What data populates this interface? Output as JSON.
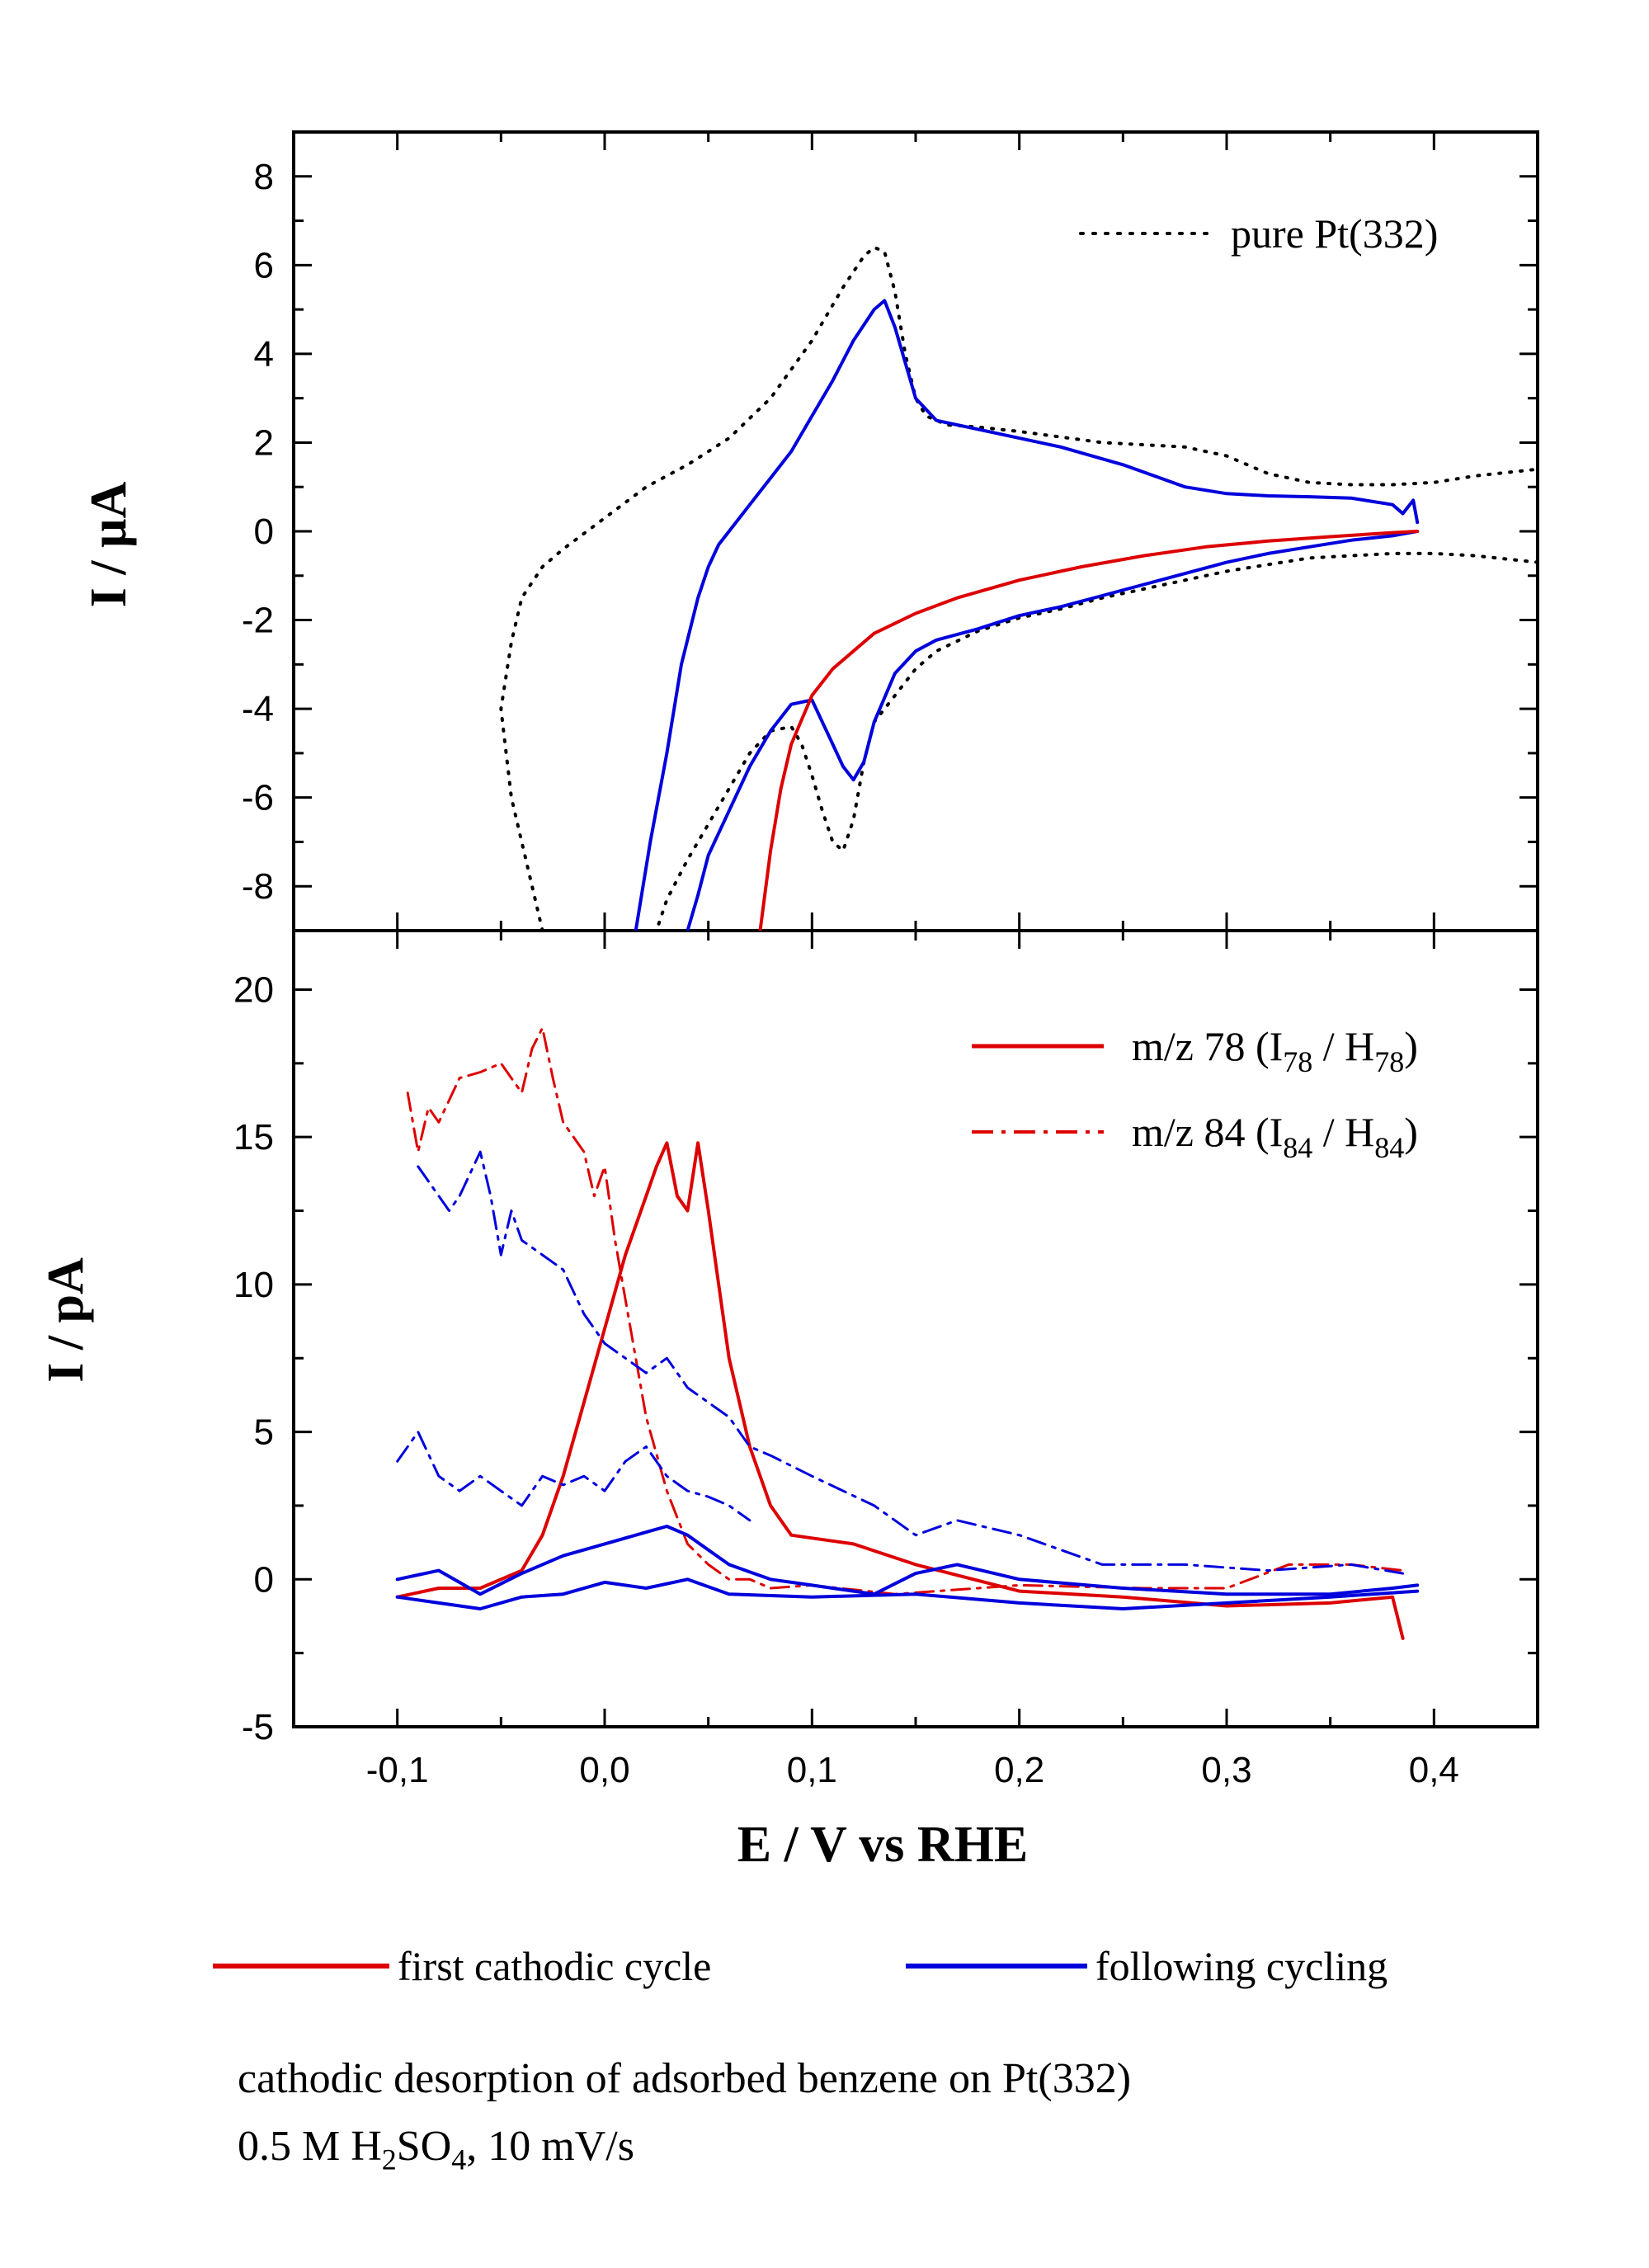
{
  "chart_data": [
    {
      "type": "line",
      "panel": "top",
      "ylabel": "I / µA",
      "ylim": [
        -9,
        9
      ],
      "xlim": [
        -0.15,
        0.45
      ],
      "y_ticks": [
        8,
        6,
        4,
        2,
        0,
        -2,
        -4,
        -6,
        -8
      ],
      "y_tick_labels": [
        "8",
        "6",
        "4",
        "2",
        "0",
        "-2",
        "-4",
        "-6",
        "-8"
      ],
      "legend": "top-right",
      "series": [
        {
          "name": "pure Pt(332)",
          "color": "#000000",
          "style": "dotted",
          "x": [
            -0.03,
            -0.045,
            -0.05,
            -0.045,
            -0.04,
            -0.03,
            -0.02,
            0.0,
            0.02,
            0.04,
            0.06,
            0.08,
            0.1,
            0.115,
            0.125,
            0.13,
            0.135,
            0.14,
            0.145,
            0.15,
            0.155,
            0.165,
            0.18,
            0.2,
            0.24,
            0.28,
            0.3,
            0.32,
            0.34,
            0.36,
            0.38,
            0.4,
            0.42,
            0.45
          ],
          "y": [
            -9.0,
            -6.0,
            -4.0,
            -2.5,
            -1.5,
            -0.8,
            -0.4,
            0.3,
            1.0,
            1.5,
            2.1,
            3.0,
            4.3,
            5.5,
            6.2,
            6.4,
            6.3,
            5.4,
            4.0,
            3.0,
            2.6,
            2.4,
            2.35,
            2.25,
            2.0,
            1.9,
            1.7,
            1.3,
            1.1,
            1.05,
            1.05,
            1.1,
            1.25,
            1.4
          ]
        },
        {
          "name": "",
          "color": "#000000",
          "style": "dotted",
          "x": [
            0.45,
            0.42,
            0.4,
            0.38,
            0.36,
            0.34,
            0.32,
            0.3,
            0.28,
            0.26,
            0.24,
            0.22,
            0.2,
            0.18,
            0.16,
            0.15,
            0.14,
            0.13,
            0.125,
            0.12,
            0.115,
            0.11,
            0.105,
            0.1,
            0.095,
            0.09,
            0.08,
            0.07,
            0.06,
            0.05,
            0.04,
            0.03,
            0.025
          ],
          "y": [
            -0.7,
            -0.55,
            -0.5,
            -0.5,
            -0.55,
            -0.6,
            -0.75,
            -0.9,
            -1.1,
            -1.3,
            -1.5,
            -1.75,
            -1.95,
            -2.25,
            -2.7,
            -3.1,
            -3.7,
            -4.3,
            -5.2,
            -6.5,
            -7.2,
            -7.0,
            -6.3,
            -5.5,
            -4.8,
            -4.4,
            -4.5,
            -5.0,
            -5.8,
            -6.6,
            -7.4,
            -8.3,
            -9.0
          ]
        },
        {
          "name": "",
          "color": "#0000dd",
          "style": "solid",
          "x": [
            0.015,
            0.022,
            0.03,
            0.037,
            0.045,
            0.05,
            0.055,
            0.06,
            0.07,
            0.08,
            0.09,
            0.1,
            0.11,
            0.12,
            0.13,
            0.135,
            0.14,
            0.145,
            0.15,
            0.16,
            0.18,
            0.2,
            0.22,
            0.25,
            0.28,
            0.3,
            0.32,
            0.34,
            0.36,
            0.38,
            0.385,
            0.39,
            0.392
          ],
          "y": [
            -9.0,
            -7.0,
            -5.0,
            -3.0,
            -1.5,
            -0.8,
            -0.3,
            0.0,
            0.6,
            1.2,
            1.8,
            2.6,
            3.4,
            4.3,
            5.0,
            5.2,
            4.6,
            3.8,
            3.0,
            2.5,
            2.3,
            2.1,
            1.9,
            1.5,
            1.0,
            0.85,
            0.8,
            0.78,
            0.75,
            0.6,
            0.4,
            0.7,
            0.2
          ]
        },
        {
          "name": "",
          "color": "#0000dd",
          "style": "solid",
          "x": [
            0.392,
            0.38,
            0.36,
            0.34,
            0.32,
            0.3,
            0.28,
            0.26,
            0.24,
            0.22,
            0.2,
            0.19,
            0.18,
            0.16,
            0.15,
            0.14,
            0.13,
            0.125,
            0.12,
            0.115,
            0.11,
            0.1,
            0.09,
            0.08,
            0.07,
            0.06,
            0.05,
            0.045,
            0.04
          ],
          "y": [
            0.0,
            -0.1,
            -0.2,
            -0.35,
            -0.5,
            -0.7,
            -0.95,
            -1.2,
            -1.45,
            -1.7,
            -1.9,
            -2.05,
            -2.2,
            -2.45,
            -2.7,
            -3.2,
            -4.3,
            -5.2,
            -5.6,
            -5.3,
            -4.8,
            -3.8,
            -3.9,
            -4.5,
            -5.3,
            -6.3,
            -7.3,
            -8.2,
            -9.0
          ]
        },
        {
          "name": "",
          "color": "#dd0000",
          "style": "solid",
          "x": [
            0.075,
            0.08,
            0.085,
            0.09,
            0.1,
            0.11,
            0.12,
            0.13,
            0.15,
            0.17,
            0.2,
            0.23,
            0.26,
            0.29,
            0.32,
            0.35,
            0.38,
            0.392
          ],
          "y": [
            -9.0,
            -7.2,
            -5.8,
            -4.8,
            -3.7,
            -3.1,
            -2.7,
            -2.3,
            -1.85,
            -1.5,
            -1.1,
            -0.8,
            -0.55,
            -0.35,
            -0.22,
            -0.12,
            -0.03,
            0.0
          ]
        }
      ]
    },
    {
      "type": "line",
      "panel": "bottom",
      "ylabel": "I / pA",
      "xlabel": "E / V vs RHE",
      "ylim": [
        -5,
        22
      ],
      "xlim": [
        -0.15,
        0.45
      ],
      "y_ticks": [
        20,
        15,
        10,
        5,
        0,
        -5
      ],
      "y_tick_labels": [
        "20",
        "15",
        "10",
        "5",
        "0",
        "-5"
      ],
      "x_ticks": [
        -0.1,
        0.0,
        0.1,
        0.2,
        0.3,
        0.4
      ],
      "x_tick_labels": [
        "-0,1",
        "0,0",
        "0,1",
        "0,2",
        "0,3",
        "0,4"
      ],
      "legend": "top-right",
      "series": [
        {
          "name": "m/z 78",
          "color": "#dd0000",
          "style": "solid",
          "x": [
            -0.1,
            -0.08,
            -0.06,
            -0.04,
            -0.03,
            -0.02,
            -0.01,
            0.0,
            0.01,
            0.02,
            0.025,
            0.03,
            0.035,
            0.04,
            0.045,
            0.05,
            0.055,
            0.06,
            0.065,
            0.07,
            0.08,
            0.09,
            0.1,
            0.12,
            0.15,
            0.2,
            0.25,
            0.3,
            0.35,
            0.38,
            0.385
          ],
          "y": [
            -0.6,
            -0.3,
            -0.3,
            0.3,
            1.5,
            3.5,
            6.0,
            8.5,
            11.0,
            13.0,
            14.0,
            14.8,
            13.0,
            12.5,
            14.8,
            12.5,
            10.0,
            7.5,
            6.0,
            4.5,
            2.5,
            1.5,
            1.4,
            1.2,
            0.5,
            -0.4,
            -0.6,
            -0.9,
            -0.8,
            -0.6,
            -2.0
          ]
        },
        {
          "name": "m/z 84",
          "color": "#dd0000",
          "style": "dashdot",
          "x": [
            -0.095,
            -0.09,
            -0.085,
            -0.08,
            -0.07,
            -0.06,
            -0.05,
            -0.04,
            -0.035,
            -0.03,
            -0.025,
            -0.02,
            -0.01,
            -0.005,
            0.0,
            0.005,
            0.01,
            0.015,
            0.02,
            0.03,
            0.04,
            0.05,
            0.06,
            0.07,
            0.08,
            0.1,
            0.14,
            0.2,
            0.26,
            0.3,
            0.33,
            0.36,
            0.385
          ],
          "y": [
            16.5,
            14.5,
            16.0,
            15.5,
            17.0,
            17.2,
            17.5,
            16.5,
            18.0,
            18.7,
            17.0,
            15.5,
            14.5,
            13.0,
            14.0,
            11.5,
            9.5,
            7.5,
            5.5,
            3.0,
            1.2,
            0.5,
            0.0,
            0.0,
            -0.3,
            -0.2,
            -0.5,
            -0.2,
            -0.3,
            -0.3,
            0.5,
            0.5,
            0.3
          ]
        },
        {
          "name": "",
          "color": "#0000dd",
          "style": "dashdot",
          "x": [
            -0.09,
            -0.08,
            -0.075,
            -0.07,
            -0.06,
            -0.055,
            -0.05,
            -0.045,
            -0.04,
            -0.03,
            -0.02,
            -0.01,
            0.0,
            0.01,
            0.02,
            0.03,
            0.04,
            0.05,
            0.06,
            0.07,
            0.08,
            0.1,
            0.13,
            0.15,
            0.17,
            0.2,
            0.24,
            0.28,
            0.32,
            0.36,
            0.385
          ],
          "y": [
            14.0,
            13.0,
            12.5,
            13.0,
            14.5,
            13.0,
            11.0,
            12.5,
            11.5,
            11.0,
            10.5,
            9.0,
            8.0,
            7.5,
            7.0,
            7.5,
            6.5,
            6.0,
            5.5,
            4.5,
            4.2,
            3.5,
            2.5,
            1.5,
            2.0,
            1.5,
            0.5,
            0.5,
            0.3,
            0.5,
            0.2
          ]
        },
        {
          "name": "",
          "color": "#0000dd",
          "style": "dashdot",
          "x": [
            -0.1,
            -0.09,
            -0.08,
            -0.07,
            -0.06,
            -0.05,
            -0.04,
            -0.03,
            -0.02,
            -0.01,
            0.0,
            0.01,
            0.02,
            0.03,
            0.04,
            0.05,
            0.06,
            0.07
          ],
          "y": [
            4.0,
            5.0,
            3.5,
            3.0,
            3.5,
            3.0,
            2.5,
            3.5,
            3.2,
            3.5,
            3.0,
            4.0,
            4.5,
            3.5,
            3.0,
            2.8,
            2.5,
            2.0
          ]
        },
        {
          "name": "",
          "color": "#0000dd",
          "style": "solid",
          "x": [
            -0.1,
            -0.08,
            -0.06,
            -0.04,
            -0.02,
            0.0,
            0.02,
            0.03,
            0.04,
            0.05,
            0.06,
            0.08,
            0.1,
            0.13,
            0.15,
            0.17,
            0.2,
            0.25,
            0.3,
            0.35,
            0.38,
            0.392
          ],
          "y": [
            0.0,
            0.3,
            -0.5,
            0.2,
            0.8,
            1.2,
            1.6,
            1.8,
            1.5,
            1.0,
            0.5,
            0.0,
            -0.2,
            -0.5,
            0.2,
            0.5,
            0.0,
            -0.3,
            -0.5,
            -0.5,
            -0.3,
            -0.2
          ]
        },
        {
          "name": "",
          "color": "#0000dd",
          "style": "solid",
          "x": [
            -0.1,
            -0.08,
            -0.06,
            -0.04,
            -0.02,
            0.0,
            0.02,
            0.04,
            0.06,
            0.1,
            0.15,
            0.2,
            0.25,
            0.3,
            0.35,
            0.392
          ],
          "y": [
            -0.6,
            -0.8,
            -1.0,
            -0.6,
            -0.5,
            -0.1,
            -0.3,
            0.0,
            -0.5,
            -0.6,
            -0.5,
            -0.8,
            -1.0,
            -0.8,
            -0.6,
            -0.4
          ]
        }
      ]
    }
  ],
  "legend_top": {
    "dotted": "pure Pt(332)"
  },
  "legend_bottom": {
    "item1_main": "m/z 78 (I",
    "item1_sub1": "78",
    "item1_mid": " / H",
    "item1_sub2": "78",
    "item1_end": ")",
    "item2_main": "m/z 84 (I",
    "item2_sub1": "84",
    "item2_mid": " / H",
    "item2_sub2": "84",
    "item2_end": ")"
  },
  "legend_cycles": {
    "red": "first cathodic cycle",
    "blue": "following cycling"
  },
  "caption": {
    "line1": "cathodic desorption of adsorbed benzene on Pt(332)",
    "line2_a": "0.5 M H",
    "line2_sub1": "2",
    "line2_b": "SO",
    "line2_sub2": "4",
    "line2_c": ", 10 mV/s"
  },
  "colors": {
    "red": "#dd0000",
    "blue": "#0000dd",
    "black": "#000000"
  }
}
